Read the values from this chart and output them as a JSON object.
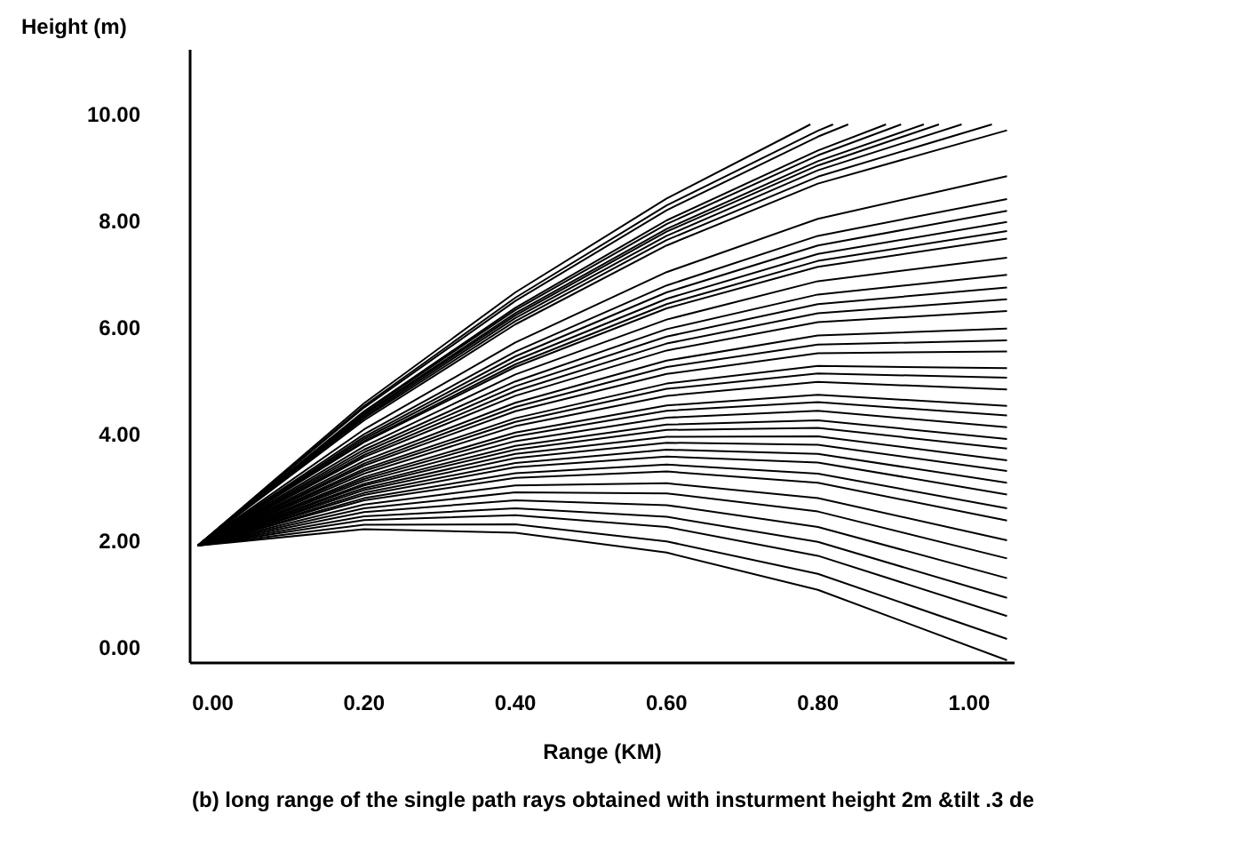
{
  "chart_data": {
    "type": "line",
    "xlabel": "Range (KM)",
    "ylabel": "Height (m)",
    "marker": "none",
    "line_style": "solid",
    "grid": false,
    "xlim": [
      -0.03,
      1.06
    ],
    "ylim": [
      -0.3,
      11.2
    ],
    "xticks": [
      {
        "value": 0,
        "label": "0.00"
      },
      {
        "value": 0.2,
        "label": "0.20"
      },
      {
        "value": 0.4,
        "label": "0.40"
      },
      {
        "value": 0.6,
        "label": "0.60"
      },
      {
        "value": 0.8,
        "label": "0.80"
      },
      {
        "value": 1,
        "label": "1.00"
      }
    ],
    "yticks": [
      {
        "value": 0,
        "label": "0.00"
      },
      {
        "value": 2,
        "label": "2.00"
      },
      {
        "value": 4,
        "label": "4.00"
      },
      {
        "value": 6,
        "label": "6.00"
      },
      {
        "value": 8,
        "label": "8.00"
      },
      {
        "value": 10,
        "label": "10.00"
      }
    ],
    "annotations": [
      "(b) long range of the single path rays obtained with insturment height 2m &tilt .3 de"
    ],
    "series": [
      {
        "color": "#000000",
        "x": [
          -0.02,
          0.2,
          0.4,
          0.6,
          0.79
        ],
        "values": [
          1.9,
          4.57,
          6.65,
          8.41,
          9.8
        ]
      },
      {
        "color": "#000000",
        "x": [
          -0.02,
          0.2,
          0.4,
          0.6,
          0.8,
          0.82
        ],
        "values": [
          1.9,
          4.52,
          6.55,
          8.28,
          9.68,
          9.8
        ]
      },
      {
        "color": "#000000",
        "x": [
          -0.02,
          0.2,
          0.4,
          0.6,
          0.8,
          0.84
        ],
        "values": [
          1.9,
          4.49,
          6.49,
          8.19,
          9.57,
          9.8
        ]
      },
      {
        "color": "#000000",
        "x": [
          -0.02,
          0.2,
          0.4,
          0.6,
          0.8,
          0.89
        ],
        "values": [
          1.9,
          4.42,
          6.36,
          8.0,
          9.31,
          9.8
        ]
      },
      {
        "color": "#000000",
        "x": [
          -0.02,
          0.2,
          0.4,
          0.6,
          0.8,
          0.91
        ],
        "values": [
          1.9,
          4.4,
          6.32,
          7.93,
          9.22,
          9.8
        ]
      },
      {
        "color": "#000000",
        "x": [
          -0.02,
          0.2,
          0.4,
          0.6,
          0.8,
          0.94
        ],
        "values": [
          1.9,
          4.37,
          6.26,
          7.84,
          9.11,
          9.8
        ]
      },
      {
        "color": "#000000",
        "x": [
          -0.02,
          0.2,
          0.4,
          0.6,
          0.8,
          0.96
        ],
        "values": [
          1.9,
          4.35,
          6.22,
          7.79,
          9.03,
          9.8
        ]
      },
      {
        "color": "#000000",
        "x": [
          -0.02,
          0.2,
          0.4,
          0.6,
          0.8,
          0.99
        ],
        "values": [
          1.9,
          4.32,
          6.17,
          7.71,
          8.94,
          9.8
        ]
      },
      {
        "color": "#000000",
        "x": [
          -0.02,
          0.2,
          0.4,
          0.6,
          0.8,
          1.03
        ],
        "values": [
          1.9,
          4.29,
          6.11,
          7.63,
          8.82,
          9.8
        ]
      },
      {
        "color": "#000000",
        "x": [
          -0.02,
          0.2,
          0.4,
          0.6,
          0.8,
          1.05
        ],
        "values": [
          1.9,
          4.25,
          6.05,
          7.53,
          8.69,
          9.69
        ]
      },
      {
        "color": "#000000",
        "x": [
          -0.02,
          0.2,
          0.4,
          0.6,
          0.8,
          1.05
        ],
        "values": [
          1.9,
          4.08,
          5.71,
          7.03,
          8.03,
          8.83
        ]
      },
      {
        "color": "#000000",
        "x": [
          -0.02,
          0.2,
          0.4,
          0.6,
          0.8,
          1.05
        ],
        "values": [
          1.9,
          3.99,
          5.54,
          6.78,
          7.71,
          8.4
        ]
      },
      {
        "color": "#000000",
        "x": [
          -0.02,
          0.2,
          0.4,
          0.6,
          0.8,
          1.05
        ],
        "values": [
          1.9,
          3.94,
          5.45,
          6.65,
          7.53,
          8.18
        ]
      },
      {
        "color": "#000000",
        "x": [
          -0.02,
          0.2,
          0.4,
          0.6,
          0.8,
          1.05
        ],
        "values": [
          1.9,
          3.9,
          5.37,
          6.53,
          7.37,
          7.97
        ]
      },
      {
        "color": "#000000",
        "x": [
          -0.02,
          0.2,
          0.4,
          0.6,
          0.8,
          1.05
        ],
        "values": [
          1.9,
          3.86,
          5.3,
          6.43,
          7.24,
          7.8
        ]
      },
      {
        "color": "#000000",
        "x": [
          -0.02,
          0.2,
          0.4,
          0.6,
          0.8,
          1.05
        ],
        "values": [
          1.9,
          3.84,
          5.25,
          6.35,
          7.13,
          7.66
        ]
      },
      {
        "color": "#000000",
        "x": [
          -0.02,
          0.2,
          0.4,
          0.6,
          0.8,
          1.05
        ],
        "values": [
          1.9,
          3.76,
          5.11,
          6.14,
          6.86,
          7.3
        ]
      },
      {
        "color": "#000000",
        "x": [
          -0.02,
          0.2,
          0.4,
          0.6,
          0.8,
          1.05
        ],
        "values": [
          1.9,
          3.7,
          4.98,
          5.96,
          6.61,
          6.98
        ]
      },
      {
        "color": "#000000",
        "x": [
          -0.02,
          0.2,
          0.4,
          0.6,
          0.8,
          1.05
        ],
        "values": [
          1.9,
          3.65,
          4.89,
          5.82,
          6.43,
          6.74
        ]
      },
      {
        "color": "#000000",
        "x": [
          -0.02,
          0.2,
          0.4,
          0.6,
          0.8,
          1.05
        ],
        "values": [
          1.9,
          3.6,
          4.8,
          5.69,
          6.26,
          6.52
        ]
      },
      {
        "color": "#000000",
        "x": [
          -0.02,
          0.2,
          0.4,
          0.6,
          0.8,
          1.05
        ],
        "values": [
          1.9,
          3.56,
          4.71,
          5.56,
          6.09,
          6.3
        ]
      },
      {
        "color": "#000000",
        "x": [
          -0.02,
          0.2,
          0.4,
          0.6,
          0.8,
          1.05
        ],
        "values": [
          1.9,
          3.49,
          4.58,
          5.37,
          5.84,
          5.97
        ]
      },
      {
        "color": "#000000",
        "x": [
          -0.02,
          0.2,
          0.4,
          0.6,
          0.8,
          1.05
        ],
        "values": [
          1.9,
          3.44,
          4.5,
          5.25,
          5.67,
          5.75
        ]
      },
      {
        "color": "#000000",
        "x": [
          -0.02,
          0.2,
          0.4,
          0.6,
          0.8,
          1.05
        ],
        "values": [
          1.9,
          3.4,
          4.42,
          5.12,
          5.51,
          5.54
        ]
      },
      {
        "color": "#000000",
        "x": [
          -0.02,
          0.2,
          0.4,
          0.6,
          0.8,
          1.05
        ],
        "values": [
          1.9,
          3.34,
          4.29,
          4.94,
          5.27,
          5.23
        ]
      },
      {
        "color": "#000000",
        "x": [
          -0.02,
          0.2,
          0.4,
          0.6,
          0.8,
          1.05
        ],
        "values": [
          1.9,
          3.3,
          4.22,
          4.84,
          5.13,
          5.05
        ]
      },
      {
        "color": "#000000",
        "x": [
          -0.02,
          0.2,
          0.4,
          0.6,
          0.8,
          1.05
        ],
        "values": [
          1.9,
          3.25,
          4.14,
          4.71,
          4.97,
          4.83
        ]
      },
      {
        "color": "#000000",
        "x": [
          -0.02,
          0.2,
          0.4,
          0.6,
          0.8,
          1.05
        ],
        "values": [
          1.9,
          3.19,
          4.02,
          4.53,
          4.73,
          4.52
        ]
      },
      {
        "color": "#000000",
        "x": [
          -0.02,
          0.2,
          0.4,
          0.6,
          0.8,
          1.05
        ],
        "values": [
          1.9,
          3.15,
          3.95,
          4.43,
          4.59,
          4.34
        ]
      },
      {
        "color": "#000000",
        "x": [
          -0.02,
          0.2,
          0.4,
          0.6,
          0.8,
          1.05
        ],
        "values": [
          1.9,
          3.11,
          3.86,
          4.3,
          4.43,
          4.12
        ]
      },
      {
        "color": "#000000",
        "x": [
          -0.02,
          0.2,
          0.4,
          0.6,
          0.8,
          1.05
        ],
        "values": [
          1.9,
          3.06,
          3.77,
          4.17,
          4.25,
          3.9
        ]
      },
      {
        "color": "#000000",
        "x": [
          -0.02,
          0.2,
          0.4,
          0.6,
          0.8,
          1.05
        ],
        "values": [
          1.9,
          3.03,
          3.7,
          4.07,
          4.11,
          3.72
        ]
      },
      {
        "color": "#000000",
        "x": [
          -0.02,
          0.2,
          0.4,
          0.6,
          0.8,
          1.05
        ],
        "values": [
          1.9,
          2.98,
          3.62,
          3.94,
          3.95,
          3.5
        ]
      },
      {
        "color": "#000000",
        "x": [
          -0.02,
          0.2,
          0.4,
          0.6,
          0.8,
          1.05
        ],
        "values": [
          1.9,
          2.94,
          3.54,
          3.83,
          3.79,
          3.3
        ]
      },
      {
        "color": "#000000",
        "x": [
          -0.02,
          0.2,
          0.4,
          0.6,
          0.8,
          1.05
        ],
        "values": [
          1.9,
          2.89,
          3.45,
          3.7,
          3.62,
          3.08
        ]
      },
      {
        "color": "#000000",
        "x": [
          -0.02,
          0.2,
          0.4,
          0.6,
          0.8,
          1.05
        ],
        "values": [
          1.9,
          2.85,
          3.37,
          3.57,
          3.46,
          2.86
        ]
      },
      {
        "color": "#000000",
        "x": [
          -0.02,
          0.2,
          0.4,
          0.6,
          0.8,
          1.05
        ],
        "values": [
          1.9,
          2.79,
          3.26,
          3.42,
          3.25,
          2.6
        ]
      },
      {
        "color": "#000000",
        "x": [
          -0.02,
          0.2,
          0.4,
          0.6,
          0.8,
          1.05
        ],
        "values": [
          1.9,
          2.75,
          3.17,
          3.29,
          3.08,
          2.37
        ]
      },
      {
        "color": "#000000",
        "x": [
          -0.02,
          0.2,
          0.4,
          0.6,
          0.8,
          1.05
        ],
        "values": [
          1.9,
          2.67,
          3.03,
          3.07,
          2.79,
          2.0
        ]
      },
      {
        "color": "#000000",
        "x": [
          -0.02,
          0.2,
          0.4,
          0.6,
          0.8,
          1.05
        ],
        "values": [
          1.9,
          2.6,
          2.9,
          2.88,
          2.54,
          1.66
        ]
      },
      {
        "color": "#000000",
        "x": [
          -0.02,
          0.2,
          0.4,
          0.6,
          0.8,
          1.05
        ],
        "values": [
          1.9,
          2.53,
          2.75,
          2.66,
          2.25,
          1.29
        ]
      },
      {
        "color": "#000000",
        "x": [
          -0.02,
          0.2,
          0.4,
          0.6,
          0.8,
          1.05
        ],
        "values": [
          1.9,
          2.45,
          2.6,
          2.44,
          1.97,
          0.92
        ]
      },
      {
        "color": "#000000",
        "x": [
          -0.02,
          0.2,
          0.4,
          0.6,
          0.8,
          1.05
        ],
        "values": [
          1.9,
          2.38,
          2.47,
          2.25,
          1.71,
          0.58
        ]
      },
      {
        "color": "#000000",
        "x": [
          -0.02,
          0.2,
          0.4,
          0.6,
          0.8,
          1.05
        ],
        "values": [
          1.9,
          2.29,
          2.3,
          1.98,
          1.37,
          0.15
        ]
      },
      {
        "color": "#000000",
        "x": [
          -0.02,
          0.2,
          0.4,
          0.6,
          0.8,
          1.05
        ],
        "values": [
          1.9,
          2.21,
          2.14,
          1.77,
          1.07,
          -0.25
        ]
      }
    ]
  }
}
